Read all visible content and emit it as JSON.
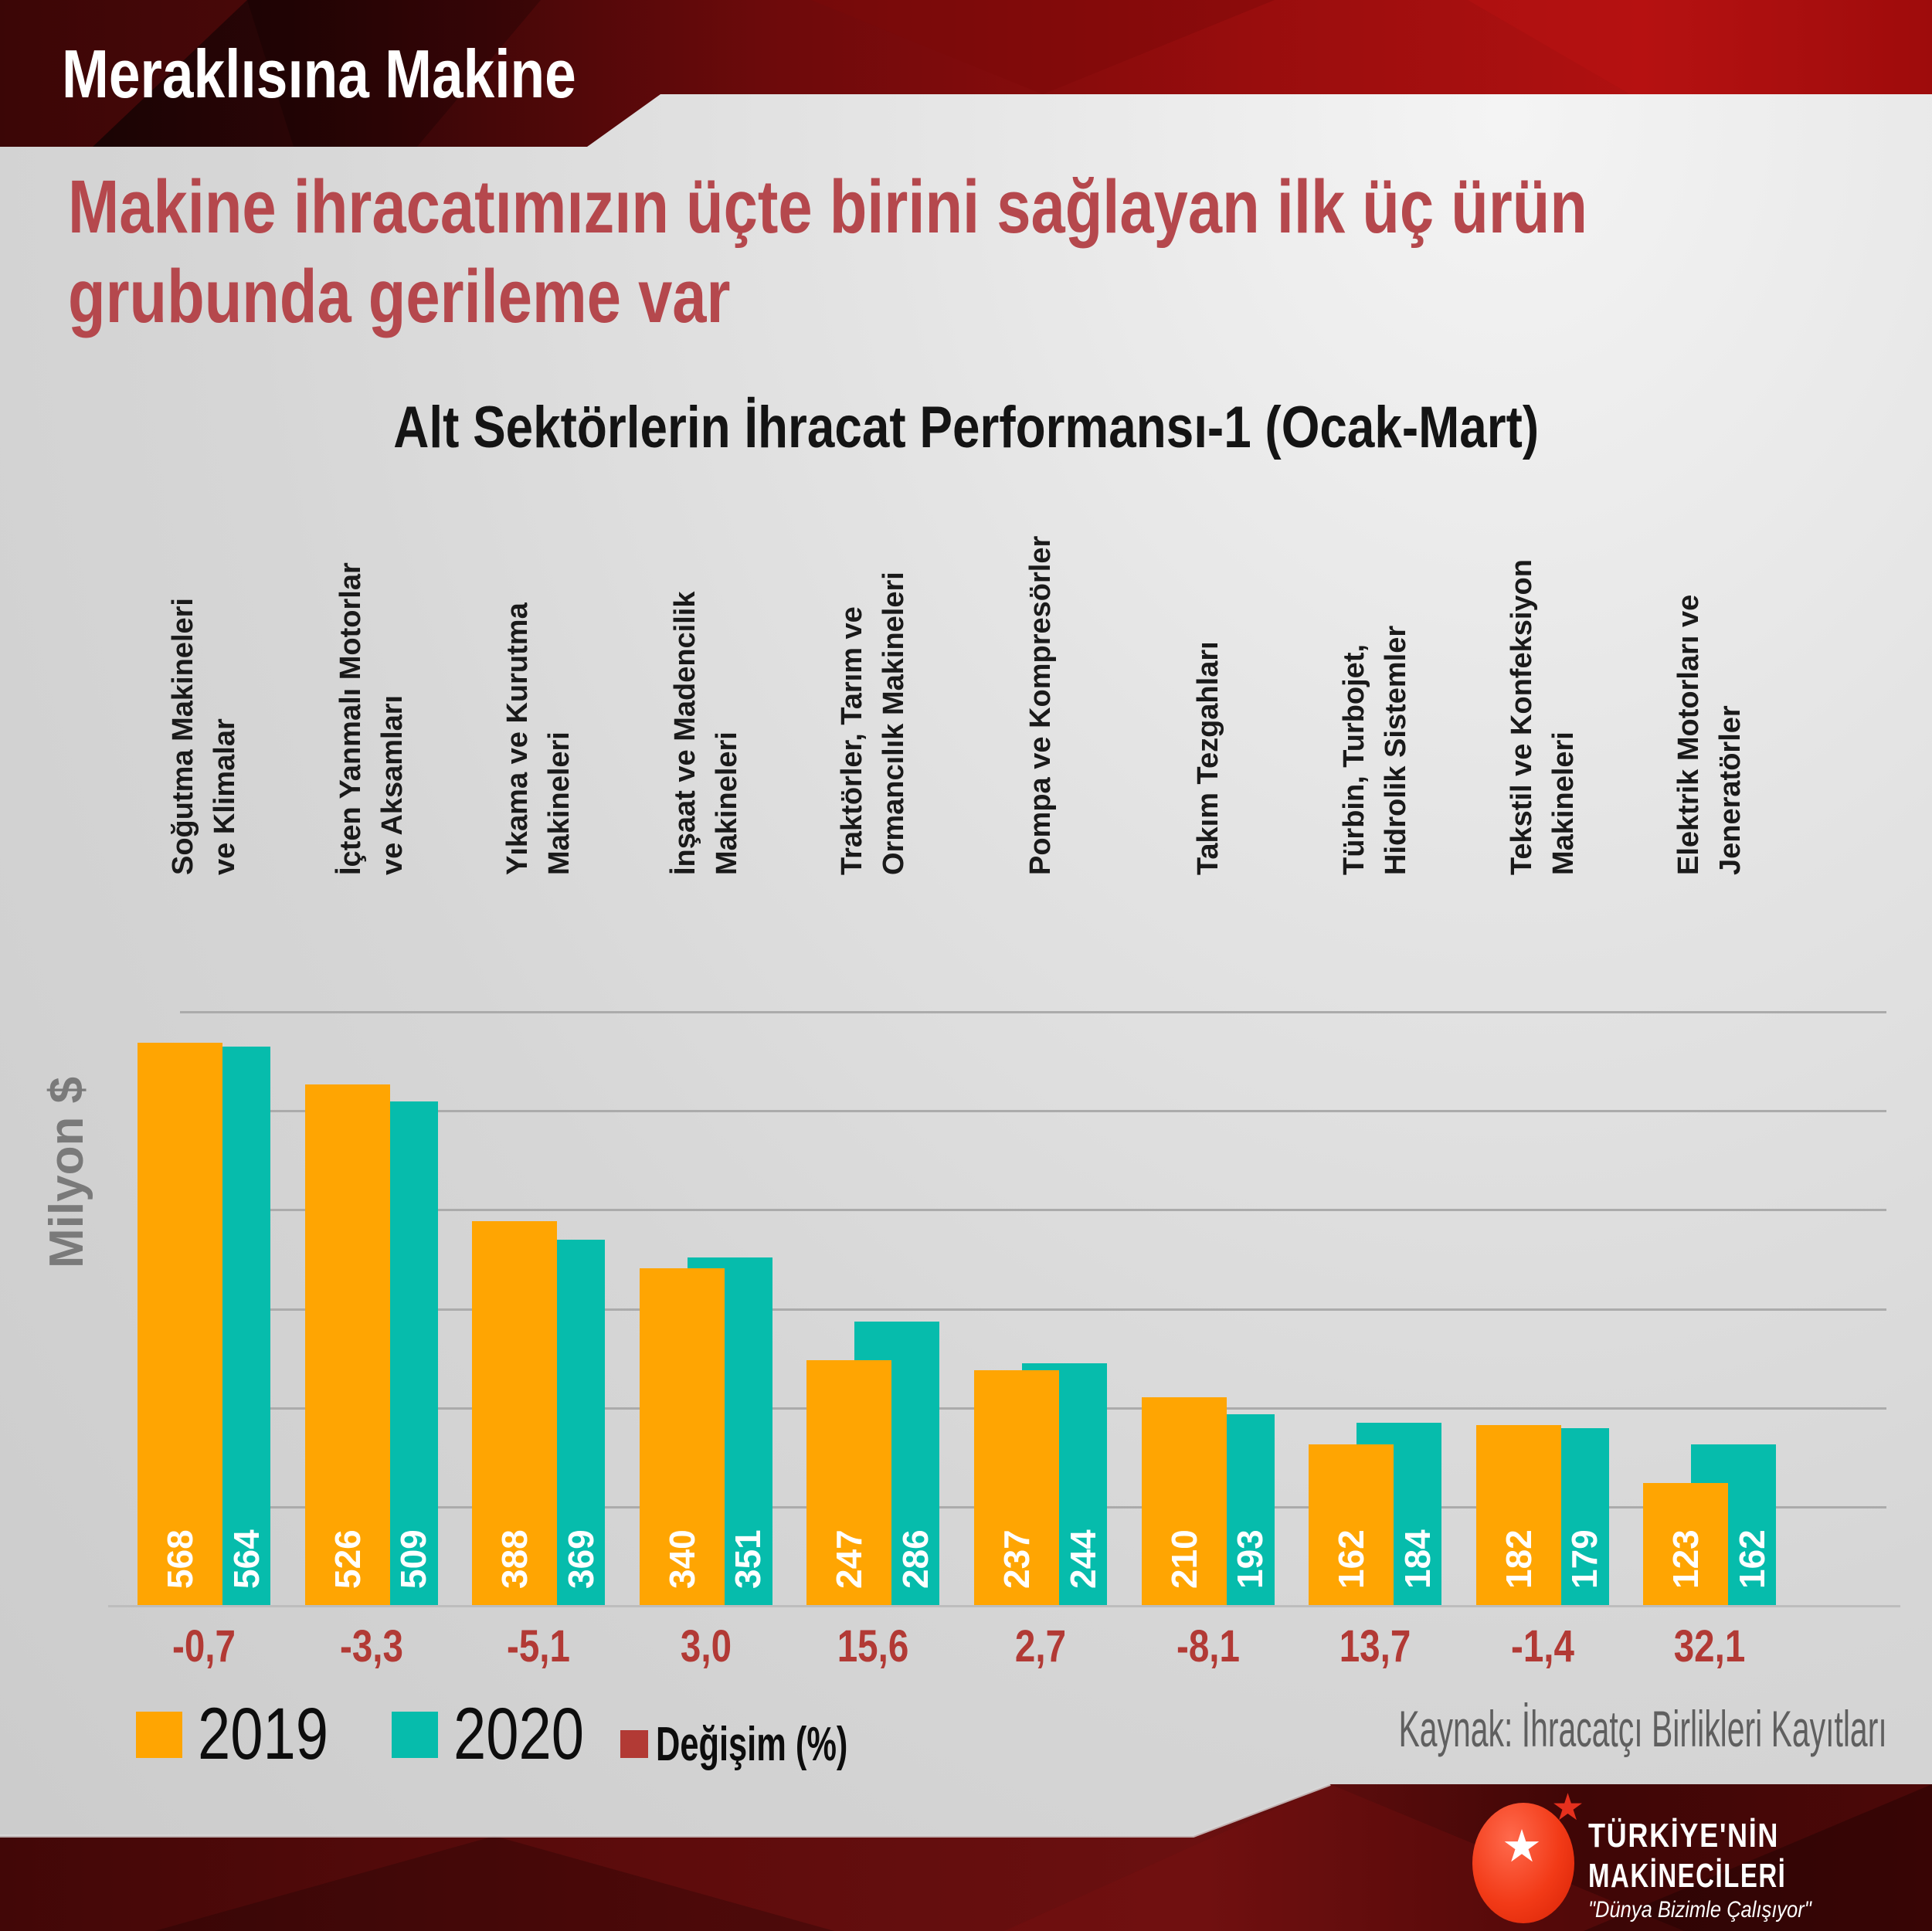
{
  "header": {
    "brand": "Meraklısına Makine"
  },
  "title": {
    "line1": "Makine ihracatımızın üçte birini sağlayan ilk üç ürün",
    "line2": "grubunda gerileme var"
  },
  "chart_data": {
    "type": "bar",
    "title": "Alt Sektörlerin İhracat Performansı-1 (Ocak-Mart)",
    "ylabel": "Milyon $",
    "ylim": [
      0,
      600
    ],
    "grid_step": 100,
    "grid": true,
    "legend_position": "bottom-left",
    "categories": [
      [
        "Soğutma Makineleri",
        "ve Klimalar"
      ],
      [
        "İçten Yanmalı Motorlar",
        "ve Aksamları"
      ],
      [
        "Yıkama ve Kurutma",
        "Makineleri"
      ],
      [
        "İnşaat ve Madencilik",
        "Makineleri"
      ],
      [
        "Traktörler, Tarım ve",
        "Ormancılık Makineleri"
      ],
      [
        "Pompa ve Kompresörler"
      ],
      [
        "Takım Tezgahları"
      ],
      [
        "Türbin, Turbojet,",
        "Hidrolik Sistemler"
      ],
      [
        "Tekstil ve Konfeksiyon",
        "Makineleri"
      ],
      [
        "Elektrik Motorları ve",
        "Jeneratörler"
      ]
    ],
    "series": [
      {
        "name": "2019",
        "color": "#FFA502",
        "values": [
          568,
          526,
          388,
          340,
          247,
          237,
          210,
          162,
          182,
          123
        ]
      },
      {
        "name": "2020",
        "color": "#06BCAC",
        "values": [
          564,
          509,
          369,
          351,
          286,
          244,
          193,
          184,
          179,
          162
        ]
      },
      {
        "name": "Değişim (%)",
        "color": "#B23A35",
        "values": [
          "-0,7",
          "-3,3",
          "-5,1",
          "3,0",
          "15,6",
          "2,7",
          "-8,1",
          "13,7",
          "-1,4",
          "32,1"
        ]
      }
    ]
  },
  "source": {
    "label": "Kaynak: İhracatçı Birlikleri Kayıtları"
  },
  "logo": {
    "line1": "TÜRKİYE'NİN",
    "line2": "MAKİNECİLERİ",
    "slogan": "\"Dünya Bizimle Çalışıyor\""
  }
}
